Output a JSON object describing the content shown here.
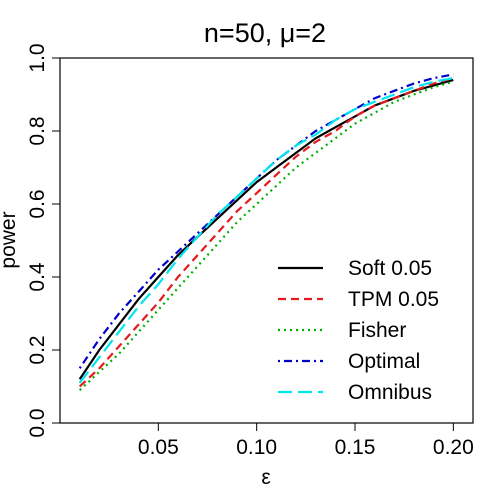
{
  "chart_data": {
    "type": "line",
    "title": "n=50, μ=2",
    "xlabel": "ε",
    "ylabel": "power",
    "xlim": [
      0.0,
      0.21
    ],
    "ylim": [
      0.0,
      1.0
    ],
    "xticks": [
      0.05,
      0.1,
      0.15,
      0.2
    ],
    "xtick_labels": [
      "0.05",
      "0.10",
      "0.15",
      "0.20"
    ],
    "yticks": [
      0.0,
      0.2,
      0.4,
      0.6,
      0.8,
      1.0
    ],
    "ytick_labels": [
      "0.0",
      "0.2",
      "0.4",
      "0.6",
      "0.8",
      "1.0"
    ],
    "grid": false,
    "legend_position": "bottom-right",
    "x": [
      0.01,
      0.02,
      0.03,
      0.04,
      0.05,
      0.06,
      0.07,
      0.08,
      0.09,
      0.1,
      0.11,
      0.12,
      0.13,
      0.14,
      0.15,
      0.16,
      0.17,
      0.18,
      0.19,
      0.2
    ],
    "series": [
      {
        "name": "Soft 0.05",
        "color": "#000000",
        "dash": "solid",
        "values": [
          0.12,
          0.2,
          0.27,
          0.34,
          0.4,
          0.46,
          0.51,
          0.56,
          0.61,
          0.66,
          0.7,
          0.74,
          0.78,
          0.81,
          0.84,
          0.87,
          0.89,
          0.91,
          0.925,
          0.94
        ]
      },
      {
        "name": "TPM 0.05",
        "color": "#e41a1c",
        "dash": "dashed",
        "values": [
          0.1,
          0.15,
          0.21,
          0.27,
          0.33,
          0.4,
          0.46,
          0.52,
          0.58,
          0.63,
          0.68,
          0.73,
          0.77,
          0.8,
          0.84,
          0.87,
          0.89,
          0.91,
          0.93,
          0.945
        ]
      },
      {
        "name": "Fisher",
        "color": "#00b000",
        "dash": "dotted",
        "values": [
          0.09,
          0.14,
          0.19,
          0.25,
          0.31,
          0.37,
          0.43,
          0.49,
          0.55,
          0.6,
          0.65,
          0.7,
          0.74,
          0.78,
          0.82,
          0.85,
          0.88,
          0.9,
          0.92,
          0.935
        ]
      },
      {
        "name": "Optimal",
        "color": "#0000cc",
        "dash": "dotdash",
        "values": [
          0.15,
          0.23,
          0.3,
          0.36,
          0.42,
          0.47,
          0.52,
          0.57,
          0.62,
          0.67,
          0.72,
          0.76,
          0.8,
          0.83,
          0.86,
          0.89,
          0.91,
          0.93,
          0.945,
          0.955
        ]
      },
      {
        "name": "Omnibus",
        "color": "#00e5ee",
        "dash": "longdash",
        "values": [
          0.11,
          0.18,
          0.25,
          0.32,
          0.38,
          0.45,
          0.51,
          0.57,
          0.62,
          0.67,
          0.72,
          0.76,
          0.79,
          0.83,
          0.86,
          0.88,
          0.9,
          0.92,
          0.935,
          0.945
        ]
      }
    ]
  }
}
